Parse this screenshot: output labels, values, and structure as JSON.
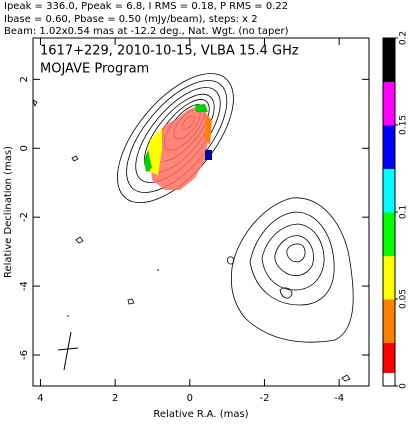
{
  "chart_data": {
    "type": "contour",
    "header": [
      "Ipeak = 336.0, Ppeak = 6.8, I RMS = 0.18, P RMS = 0.22",
      "Ibase = 0.60, Pbase = 0.50 (mJy/beam), steps: x 2",
      "Beam: 1.02x0.54 mas at -12.2 deg., Nat. Wgt. (no taper)"
    ],
    "title": "1617+229, 2010-10-15, VLBA 15.4 GHz",
    "subtitle": "MOJAVE Program",
    "xlabel": "Relative R.A. (mas)",
    "ylabel": "Relative Declination (mas)",
    "xlim": [
      4.2,
      -4.8
    ],
    "xticks": [
      4,
      2,
      0,
      -2,
      -4
    ],
    "ylim": [
      -6.9,
      3.2
    ],
    "yticks": [
      2,
      0,
      -2,
      -4,
      -6
    ],
    "colorbar": {
      "lim": [
        0,
        0.2
      ],
      "ticks": [
        0,
        0.05,
        0.1,
        0.15,
        0.2
      ],
      "colors": [
        "#ffffff",
        "#ff0000",
        "#ff8000",
        "#ffff00",
        "#00ff00",
        "#00ffff",
        "#0000ff",
        "#ff00ff",
        "#000000"
      ]
    }
  }
}
